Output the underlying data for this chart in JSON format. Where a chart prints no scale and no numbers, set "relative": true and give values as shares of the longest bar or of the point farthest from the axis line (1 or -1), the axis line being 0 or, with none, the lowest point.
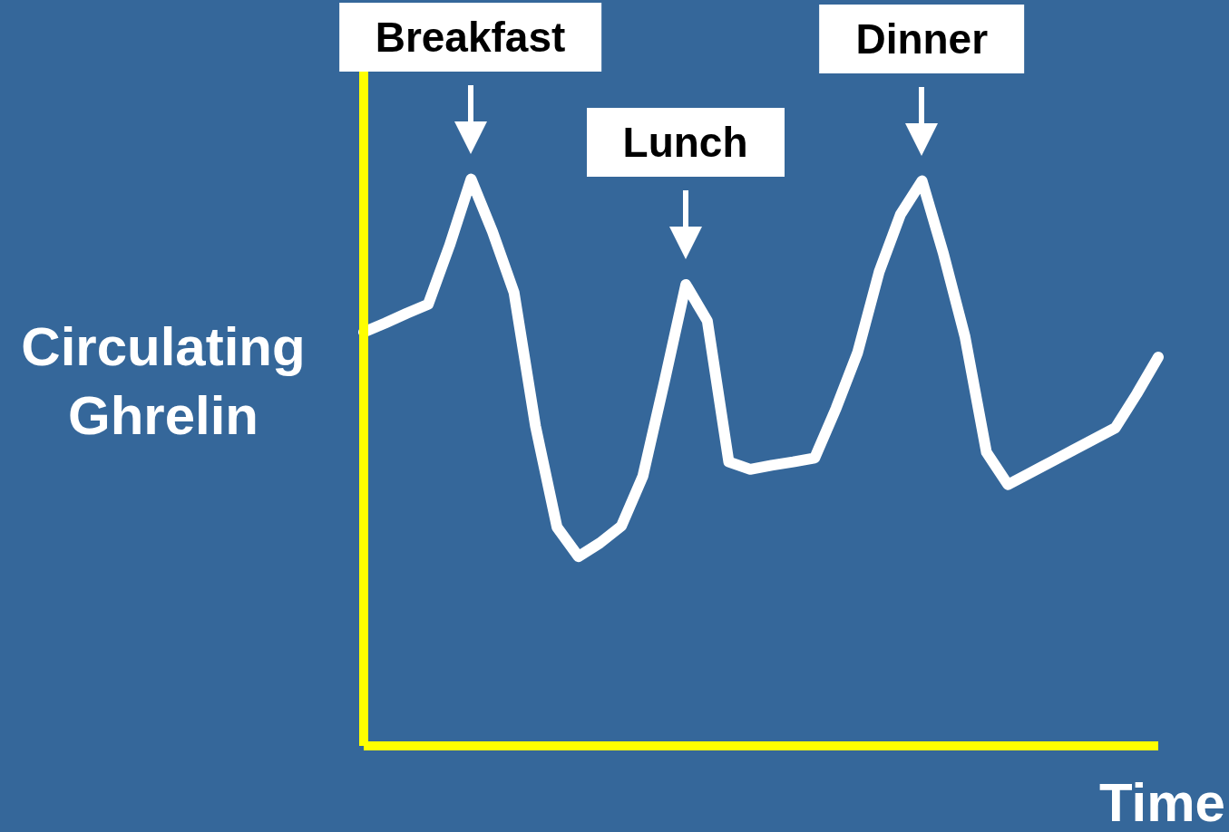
{
  "chart_data": {
    "type": "line",
    "relative": true,
    "xlabel": "Time",
    "ylabel": "Circulating Ghrelin",
    "marker": "none",
    "line_style": "solid",
    "grid": false,
    "legend": false,
    "categories": [
      null,
      null,
      null,
      null,
      null,
      null,
      null,
      null,
      null,
      null,
      null,
      null,
      null,
      null,
      null,
      null,
      null,
      null,
      null,
      null,
      null,
      null,
      null,
      null,
      null,
      null,
      null,
      null,
      null,
      null,
      null,
      null,
      null,
      null,
      null,
      null,
      null,
      null
    ],
    "values": [
      0.73,
      0.746,
      0.763,
      0.779,
      0.883,
      1.0,
      0.907,
      0.8,
      0.564,
      0.386,
      0.334,
      0.358,
      0.388,
      0.476,
      0.642,
      0.814,
      0.75,
      0.501,
      0.488,
      0.495,
      0.501,
      0.508,
      0.596,
      0.694,
      0.836,
      0.938,
      0.997,
      0.868,
      0.722,
      0.518,
      0.461,
      0.481,
      0.501,
      0.521,
      0.541,
      0.561,
      0.621,
      0.686
    ],
    "color": "#ffffff",
    "annotations": [
      "Breakfast",
      "Lunch",
      "Dinner"
    ]
  }
}
